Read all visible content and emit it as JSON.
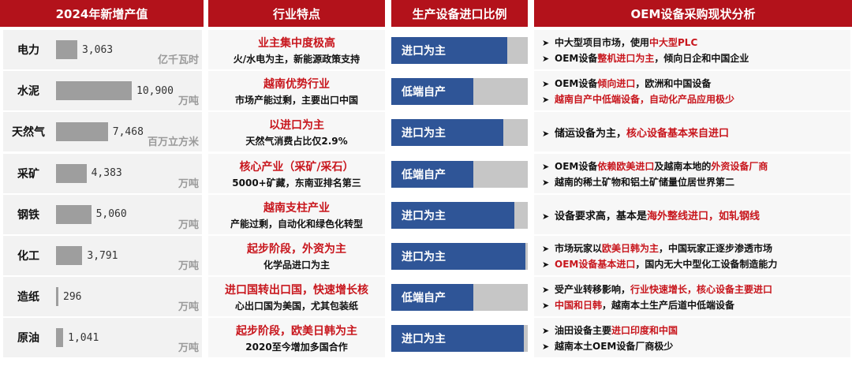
{
  "headers": {
    "col1": "2024年新增产值",
    "col2": "行业特点",
    "col3": "生产设备进口比例",
    "col4": "OEM设备采购现状分析"
  },
  "colors": {
    "header_bg": "#b3121b",
    "accent_red": "#c8161d",
    "import_fill": "#2f5597",
    "bar_gray": "#9e9e9e"
  },
  "rows": [
    {
      "name": "电力",
      "value": "3,063",
      "unit": "亿千瓦时",
      "trait_html": "<span class='red'>业主集中度极高</span>",
      "trait_sub": "火/水电为主，新能源政策支持",
      "import_label": "进口为主",
      "import_ratio": 0.85,
      "analysis": [
        "中大型项目市场，使用<span class='red'>中大型PLC</span>",
        "OEM设备<span class='red'>整机进口为主</span>，倾向日企和中国企业"
      ]
    },
    {
      "name": "水泥",
      "value": "10,900",
      "unit": "万吨",
      "trait_html": "<span class='red'>越南优势行业</span>",
      "trait_sub": "市场产能过剩，主要出口中国",
      "import_label": "低端自产",
      "import_ratio": 0.6,
      "analysis": [
        "OEM设备<span class='red'>倾向进口</span>，欧洲和中国设备",
        "<span class='red'>越南自产中低端设备，自动化产品应用极少</span>"
      ]
    },
    {
      "name": "天然气",
      "value": "7,468",
      "unit": "百万立方米",
      "trait_html": "<span class='red'>以进口为主</span>",
      "trait_sub": "天然气消费占比仅2.9%",
      "import_label": "进口为主",
      "import_ratio": 0.82,
      "analysis": [
        "储运设备为主，<span class='red'>核心设备基本来自进口</span>"
      ]
    },
    {
      "name": "采矿",
      "value": "4,383",
      "unit": "万吨",
      "trait_html": "<span class='red'>核心产业（采矿/采石）</span>",
      "trait_sub": "5000+矿藏，东南亚排名第三",
      "import_label": "低端自产",
      "import_ratio": 0.6,
      "analysis": [
        "OEM设备<span class='red'>依赖欧美进口</span>及越南本地的<span class='red'>外资设备厂商</span>",
        "越南的稀土矿物和铝土矿储量位居世界第二"
      ]
    },
    {
      "name": "钢铁",
      "value": "5,060",
      "unit": "万吨",
      "trait_html": "<span class='red'>越南支柱产业</span>",
      "trait_sub": "产能过剩，自动化和绿色化转型",
      "import_label": "进口为主",
      "import_ratio": 0.9,
      "analysis": [
        "设备要求高，基本是<span class='red'>海外整线进口，如轧钢线</span>"
      ]
    },
    {
      "name": "化工",
      "value": "3,791",
      "unit": "万吨",
      "trait_html": "<span class='red'>起步阶段，外资为主</span>",
      "trait_sub": "化学品进口为主",
      "import_label": "进口为主",
      "import_ratio": 0.98,
      "analysis": [
        "市场玩家以<span class='red'>欧美日韩为主</span>，中国玩家正逐步渗透市场",
        "<span class='red'>OEM设备基本进口</span>，国内无大中型化工设备制造能力"
      ]
    },
    {
      "name": "造纸",
      "value": "296",
      "unit": "万吨",
      "trait_html": "<span class='red'>进口国转出口国，快速增长</span>核",
      "trait_sub": "心出口国为美国，尤其包装纸",
      "import_label": "低端自产",
      "import_ratio": 0.6,
      "analysis": [
        "受产业转移影响，<span class='red'>行业快速增长，核心设备主要进口</span>",
        "<span class='red'>中国和日韩</span>，越南本土生产后道中低端设备"
      ]
    },
    {
      "name": "原油",
      "value": "1,041",
      "unit": "万吨",
      "trait_html": "<span class='red'>起步阶段，欧美日韩为主</span>",
      "trait_sub": "2020至今增加多国合作",
      "import_label": "进口为主",
      "import_ratio": 0.97,
      "analysis": [
        "油田设备主要<span class='red'>进口印度和中国</span>",
        "越南本土OEM设备厂商极少"
      ]
    }
  ]
}
